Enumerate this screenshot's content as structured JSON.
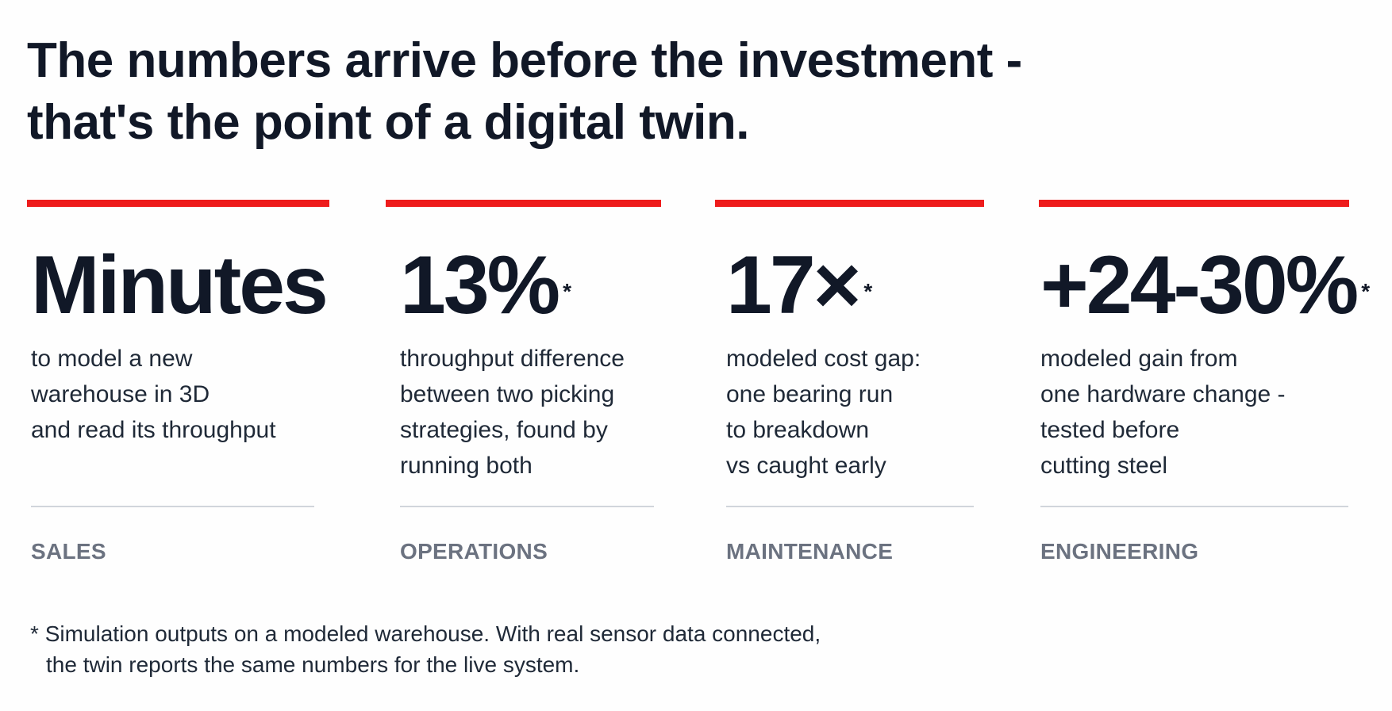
{
  "header": {
    "title_lines": [
      "The numbers arrive before the investment -",
      "that's the point of a digital twin."
    ]
  },
  "stats": [
    {
      "value": "Minutes",
      "note": null,
      "description": [
        "to model a new",
        "warehouse in 3D",
        "and read its throughput"
      ],
      "team": "SALES"
    },
    {
      "value": "13%",
      "note": "*",
      "description": [
        "throughput difference",
        "between two picking",
        "strategies, found by",
        "running both"
      ],
      "team": "OPERATIONS"
    },
    {
      "value": "17×",
      "note": "*",
      "description": [
        "modeled cost gap:",
        "one bearing run",
        "to breakdown",
        "vs caught early"
      ],
      "team": "MAINTENANCE"
    },
    {
      "value": "+24-30%",
      "note": "*",
      "description": [
        "modeled gain from",
        "one hardware change -",
        "tested before",
        "cutting steel"
      ],
      "team": "ENGINEERING"
    }
  ],
  "footnote": {
    "marker": "*",
    "lines": [
      "Simulation outputs on a modeled warehouse. With real sensor data connected,",
      "the twin reports the same numbers for the live system."
    ]
  }
}
